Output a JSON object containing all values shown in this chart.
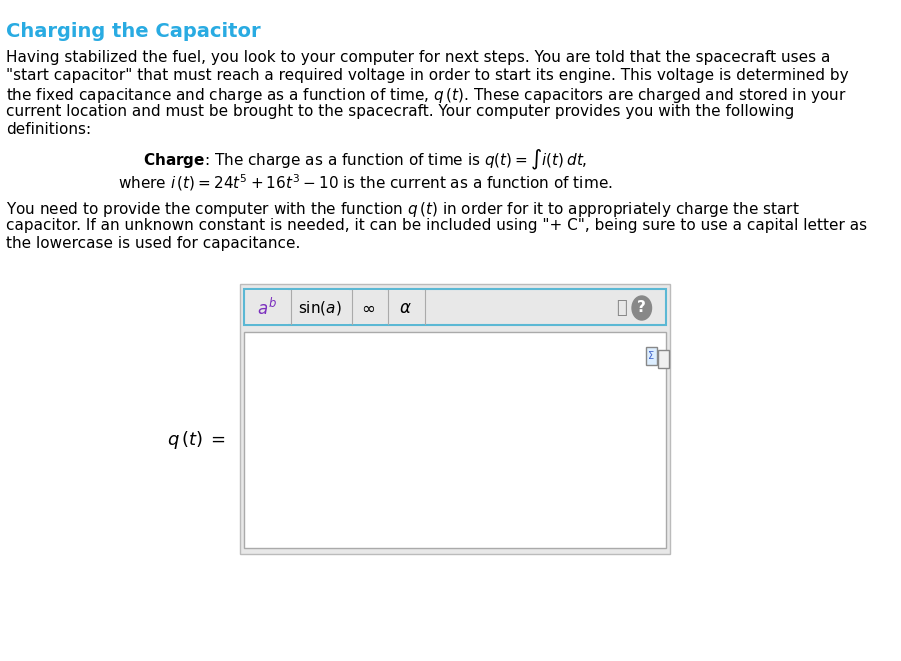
{
  "title": "Charging the Capacitor",
  "title_color": "#29ABE2",
  "bg_color": "#ffffff",
  "body_text_color": "#000000",
  "paragraph1": "Having stabilized the fuel, you look to your computer for next steps. You are told that the spacecraft uses a\n\"start capacitor\" that must reach a required voltage in order to start its engine. This voltage is determined by\nthe fixed capacitance and charge as a function of time, $q\\,(t)$. These capacitors are charged and stored in your\ncurrent location and must be brought to the spacecraft. Your computer provides you with the following\ndefinitions:",
  "charge_line": "$\\mathbf{Charge}$: The charge as a function of time is $q(t) = \\int i(t)\\, dt,$",
  "where_line": "where $i\\,(t) = 24t^5 + 16t^3 - 10$ is the current as a function of time.",
  "paragraph2": "You need to provide the computer with the function $q\\,(t)$ in order for it to appropriately charge the start\ncapacitor. If an unknown constant is needed, it can be included using \"+ C\", being sure to use a capital letter as\nthe lowercase is used for capacitance.",
  "input_label": "$q\\,(t) =$",
  "toolbar_bg": "#e8e8e8",
  "toolbar_border": "#5bb8d4",
  "input_box_bg": "#ffffff",
  "input_box_border": "#cccccc",
  "outer_panel_bg": "#e8e8e8",
  "btn_ab_text": "$a^b$",
  "btn_sin_text": "$\\sin(a)$",
  "btn_inf_text": "$\\infty$",
  "btn_alpha_text": "$\\alpha$",
  "font_size_body": 11,
  "font_size_title": 14
}
